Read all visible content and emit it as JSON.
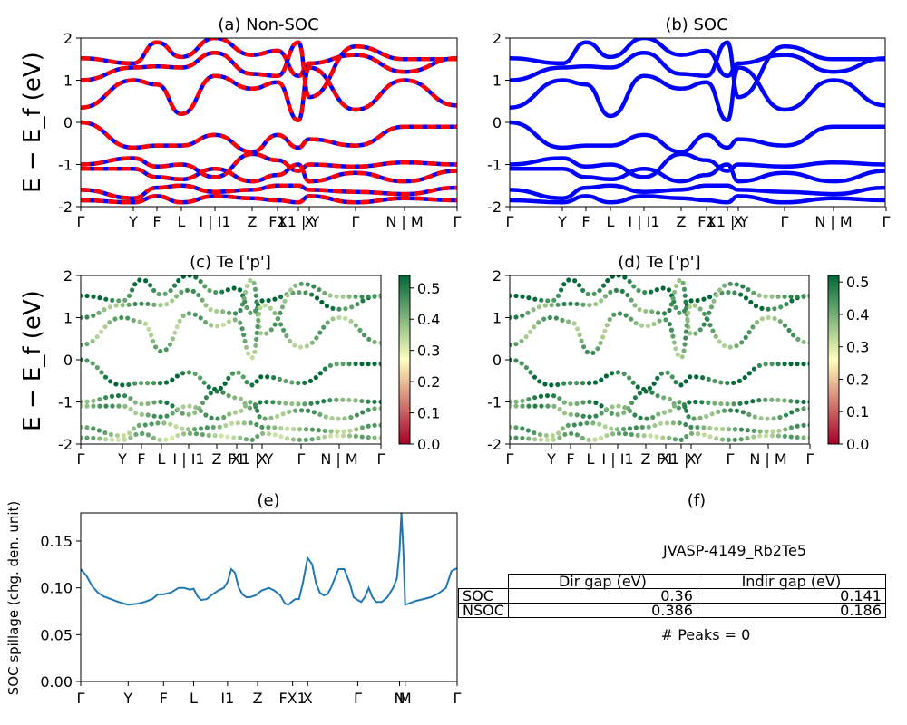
{
  "ylabel_main": "E − E_f (eV)",
  "panels": {
    "a": {
      "title": "(a) Non-SOC"
    },
    "b": {
      "title": "(b) SOC"
    },
    "c": {
      "title": "(c)  Te ['p']"
    },
    "d": {
      "title": "(d) Te ['p']"
    },
    "e": {
      "title": "(e)",
      "ylabel": "SOC spillage (chg. den. unit)"
    },
    "f": {
      "title": "(f)",
      "material": "JVASP-4149_Rb2Te5",
      "peaks": "# Peaks = 0"
    }
  },
  "colors": {
    "nonsoc_red": "#ff0000",
    "nonsoc_blue": "#0000ff",
    "soc_blue": "#0000ff",
    "spillage": "#1f77b4",
    "cmap_low": "#a50026",
    "cmap_mid": "#ffffbf",
    "cmap_high": "#006837"
  },
  "table": {
    "columns": [
      "",
      "Dir gap (eV)",
      "Indir gap (eV)"
    ],
    "rows": [
      {
        "label": "SOC",
        "dir": "0.36",
        "indir": "0.141"
      },
      {
        "label": "NSOC",
        "dir": "0.386",
        "indir": "0.186"
      }
    ]
  },
  "chart_data": [
    {
      "type": "line",
      "panel": "a",
      "title": "(a) Non-SOC",
      "ylim": [
        -2,
        2
      ],
      "yticks": [
        -2,
        -1,
        0,
        1,
        2
      ],
      "kpath_labels": [
        "Γ",
        "Y",
        "F",
        "L",
        "I | I1",
        "Z",
        "F1",
        "X1 | Y",
        "X",
        "Γ",
        "N | M",
        "Γ"
      ],
      "series": [
        {
          "values": [
            1.52,
            1.4,
            1.9,
            1.55,
            2.0,
            1.6,
            1.7,
            1.1,
            1.4,
            1.6,
            1.2,
            1.52
          ]
        },
        {
          "values": [
            1.0,
            1.3,
            1.33,
            1.3,
            1.65,
            1.15,
            1.1,
            1.9,
            0.6,
            1.8,
            1.5,
            1.5
          ]
        },
        {
          "values": [
            0.35,
            1.0,
            0.9,
            0.2,
            1.1,
            0.8,
            0.95,
            0.05,
            1.3,
            0.3,
            1.0,
            0.4
          ]
        },
        {
          "values": [
            0.0,
            -0.6,
            -0.55,
            -0.55,
            -0.3,
            -0.7,
            -0.3,
            -0.6,
            -0.4,
            -0.55,
            -0.1,
            -0.1
          ]
        },
        {
          "values": [
            -1.0,
            -0.85,
            -1.05,
            -1.0,
            -1.3,
            -0.75,
            -0.9,
            -1.15,
            -1.0,
            -1.05,
            -0.95,
            -1.0
          ]
        },
        {
          "values": [
            -1.1,
            -1.1,
            -1.3,
            -1.35,
            -1.1,
            -1.4,
            -1.25,
            -1.0,
            -1.4,
            -1.2,
            -1.4,
            -1.15
          ]
        },
        {
          "values": [
            -1.6,
            -1.8,
            -1.55,
            -1.5,
            -1.65,
            -1.6,
            -1.5,
            -1.5,
            -1.6,
            -1.65,
            -1.7,
            -1.55
          ]
        },
        {
          "values": [
            -1.85,
            -1.9,
            -1.75,
            -1.9,
            -1.75,
            -1.8,
            -1.85,
            -1.9,
            -1.75,
            -1.9,
            -1.8,
            -1.85
          ]
        }
      ]
    },
    {
      "type": "line",
      "panel": "b",
      "title": "(b) SOC",
      "ylim": [
        -2,
        2
      ],
      "yticks": [
        -2,
        -1,
        0,
        1,
        2
      ],
      "kpath_labels": [
        "Γ",
        "Y",
        "F",
        "L",
        "I | I1",
        "Z",
        "F1",
        "X1 | Y",
        "X",
        "Γ",
        "N | M",
        "Γ"
      ],
      "series": [
        {
          "values": [
            1.52,
            1.4,
            1.9,
            1.55,
            2.0,
            1.6,
            1.7,
            1.1,
            1.4,
            1.6,
            1.2,
            1.52
          ]
        },
        {
          "values": [
            1.0,
            1.3,
            1.33,
            1.3,
            1.65,
            1.15,
            1.1,
            1.9,
            0.6,
            1.8,
            1.5,
            1.5
          ]
        },
        {
          "values": [
            0.35,
            1.0,
            0.9,
            0.15,
            1.1,
            0.8,
            0.95,
            0.05,
            1.3,
            0.3,
            1.0,
            0.4
          ]
        },
        {
          "values": [
            0.0,
            -0.6,
            -0.55,
            -0.55,
            -0.3,
            -0.7,
            -0.3,
            -0.6,
            -0.4,
            -0.55,
            -0.1,
            -0.1
          ]
        },
        {
          "values": [
            -1.0,
            -0.85,
            -1.05,
            -1.0,
            -1.3,
            -0.75,
            -0.9,
            -1.15,
            -1.0,
            -1.05,
            -0.95,
            -1.0
          ]
        },
        {
          "values": [
            -1.1,
            -1.1,
            -1.3,
            -1.35,
            -1.1,
            -1.4,
            -1.25,
            -1.0,
            -1.4,
            -1.2,
            -1.4,
            -1.15
          ]
        },
        {
          "values": [
            -1.6,
            -1.8,
            -1.55,
            -1.5,
            -1.65,
            -1.6,
            -1.5,
            -1.5,
            -1.6,
            -1.65,
            -1.7,
            -1.55
          ]
        },
        {
          "values": [
            -1.85,
            -1.9,
            -1.75,
            -1.9,
            -1.75,
            -1.8,
            -1.85,
            -1.9,
            -1.75,
            -1.9,
            -1.8,
            -1.85
          ]
        }
      ]
    },
    {
      "type": "scatter",
      "panel": "c",
      "title": "(c)  Te ['p']",
      "ylim": [
        -2,
        2
      ],
      "yticks": [
        -2,
        -1,
        0,
        1,
        2
      ],
      "colorbar": {
        "min": 0.0,
        "max": 0.54,
        "ticks": [
          0.0,
          0.1,
          0.2,
          0.3,
          0.4,
          0.5
        ]
      },
      "kpath_labels": [
        "Γ",
        "Y",
        "F",
        "L",
        "I | I1",
        "Z",
        "F1",
        "X1 | Y",
        "X",
        "Γ",
        "N | M",
        "Γ"
      ],
      "series": [
        {
          "values": [
            1.52,
            1.4,
            1.9,
            1.55,
            2.0,
            1.6,
            1.7,
            1.1,
            1.4,
            1.6,
            1.2,
            1.52
          ],
          "weight": 0.5
        },
        {
          "values": [
            1.0,
            1.3,
            1.33,
            1.3,
            1.65,
            1.15,
            1.1,
            1.9,
            0.6,
            1.8,
            1.5,
            1.5
          ],
          "weight": 0.42
        },
        {
          "values": [
            0.35,
            1.0,
            0.9,
            0.2,
            1.1,
            0.8,
            0.95,
            0.05,
            1.3,
            0.3,
            1.0,
            0.4
          ],
          "weight": 0.4
        },
        {
          "values": [
            0.0,
            -0.6,
            -0.55,
            -0.55,
            -0.3,
            -0.7,
            -0.3,
            -0.6,
            -0.4,
            -0.55,
            -0.1,
            -0.1
          ],
          "weight": 0.5
        },
        {
          "values": [
            -1.0,
            -0.85,
            -1.05,
            -1.0,
            -1.3,
            -0.75,
            -0.9,
            -1.15,
            -1.0,
            -1.05,
            -0.95,
            -1.0
          ],
          "weight": 0.45
        },
        {
          "values": [
            -1.1,
            -1.1,
            -1.3,
            -1.35,
            -1.1,
            -1.4,
            -1.25,
            -1.0,
            -1.4,
            -1.2,
            -1.4,
            -1.15
          ],
          "weight": 0.42
        },
        {
          "values": [
            -1.6,
            -1.8,
            -1.55,
            -1.5,
            -1.65,
            -1.6,
            -1.5,
            -1.5,
            -1.6,
            -1.65,
            -1.7,
            -1.55
          ],
          "weight": 0.4
        },
        {
          "values": [
            -1.85,
            -1.9,
            -1.75,
            -1.9,
            -1.75,
            -1.8,
            -1.85,
            -1.9,
            -1.75,
            -1.9,
            -1.8,
            -1.85
          ],
          "weight": 0.38
        }
      ]
    },
    {
      "type": "scatter",
      "panel": "d",
      "title": "(d) Te ['p']",
      "ylim": [
        -2,
        2
      ],
      "yticks": [
        -2,
        -1,
        0,
        1,
        2
      ],
      "colorbar": {
        "min": 0.0,
        "max": 0.52,
        "ticks": [
          0.0,
          0.1,
          0.2,
          0.3,
          0.4,
          0.5
        ]
      },
      "kpath_labels": [
        "Γ",
        "Y",
        "F",
        "L",
        "I | I1",
        "Z",
        "F1",
        "X1 | Y",
        "X",
        "Γ",
        "N | M",
        "Γ"
      ],
      "series": [
        {
          "values": [
            1.52,
            1.4,
            1.9,
            1.55,
            2.0,
            1.6,
            1.7,
            1.1,
            1.4,
            1.6,
            1.2,
            1.52
          ],
          "weight": 0.5
        },
        {
          "values": [
            1.0,
            1.3,
            1.33,
            1.3,
            1.65,
            1.15,
            1.1,
            1.9,
            0.6,
            1.8,
            1.5,
            1.5
          ],
          "weight": 0.42
        },
        {
          "values": [
            0.35,
            1.0,
            0.9,
            0.15,
            1.1,
            0.8,
            0.95,
            0.05,
            1.3,
            0.3,
            1.0,
            0.4
          ],
          "weight": 0.4
        },
        {
          "values": [
            0.0,
            -0.6,
            -0.55,
            -0.55,
            -0.3,
            -0.7,
            -0.3,
            -0.6,
            -0.4,
            -0.55,
            -0.1,
            -0.1
          ],
          "weight": 0.5
        },
        {
          "values": [
            -1.0,
            -0.85,
            -1.05,
            -1.0,
            -1.3,
            -0.75,
            -0.9,
            -1.15,
            -1.0,
            -1.05,
            -0.95,
            -1.0
          ],
          "weight": 0.45
        },
        {
          "values": [
            -1.1,
            -1.1,
            -1.3,
            -1.35,
            -1.1,
            -1.4,
            -1.25,
            -1.0,
            -1.4,
            -1.2,
            -1.4,
            -1.15
          ],
          "weight": 0.42
        },
        {
          "values": [
            -1.6,
            -1.8,
            -1.55,
            -1.5,
            -1.65,
            -1.6,
            -1.5,
            -1.5,
            -1.6,
            -1.65,
            -1.7,
            -1.55
          ],
          "weight": 0.4
        },
        {
          "values": [
            -1.85,
            -1.9,
            -1.75,
            -1.9,
            -1.75,
            -1.8,
            -1.85,
            -1.9,
            -1.75,
            -1.9,
            -1.8,
            -1.85
          ],
          "weight": 0.38
        }
      ]
    },
    {
      "type": "line",
      "panel": "e",
      "title": "(e)",
      "ylabel": "SOC spillage (chg. den. unit)",
      "ylim": [
        0.0,
        0.18
      ],
      "yticks": [
        0.0,
        0.05,
        0.1,
        0.15
      ],
      "xlim": [
        0,
        100
      ],
      "kpath_labels": [
        "Γ",
        "Y",
        "F",
        "L",
        "I1",
        "Z",
        "FX1",
        "X",
        "Γ",
        "N",
        "M",
        "Γ"
      ],
      "kpath_x": [
        0,
        12.6,
        22.0,
        30.0,
        39.0,
        47.0,
        56.3,
        60.3,
        73.6,
        84.7,
        86.2,
        100
      ],
      "x": [
        0,
        1.5,
        3,
        4.5,
        6,
        8,
        10,
        12.6,
        15,
        17,
        19,
        20.5,
        22,
        24,
        26,
        27.5,
        29,
        30,
        31,
        32,
        33.5,
        35,
        36.5,
        38,
        39,
        40,
        41,
        42,
        43,
        44,
        45,
        46.5,
        48,
        50,
        51.5,
        53,
        54.3,
        55.2,
        56,
        57,
        58,
        59,
        60.3,
        61.5,
        62.5,
        63.5,
        64.5,
        65.5,
        66.5,
        67.5,
        68.5,
        70,
        71.5,
        72.5,
        73.6,
        74.5,
        75.5,
        76.5,
        77.5,
        78.5,
        80,
        81.5,
        83,
        84,
        84.7,
        85.2,
        85.7,
        86.2,
        87,
        89,
        91,
        93,
        95,
        97,
        98.5,
        100
      ],
      "y": [
        0.12,
        0.113,
        0.102,
        0.095,
        0.091,
        0.088,
        0.085,
        0.082,
        0.083,
        0.085,
        0.088,
        0.093,
        0.093,
        0.095,
        0.1,
        0.1,
        0.098,
        0.099,
        0.091,
        0.087,
        0.088,
        0.093,
        0.097,
        0.1,
        0.106,
        0.12,
        0.116,
        0.1,
        0.093,
        0.09,
        0.09,
        0.092,
        0.097,
        0.1,
        0.097,
        0.092,
        0.083,
        0.082,
        0.085,
        0.088,
        0.088,
        0.105,
        0.132,
        0.125,
        0.105,
        0.095,
        0.092,
        0.093,
        0.1,
        0.11,
        0.12,
        0.12,
        0.105,
        0.09,
        0.087,
        0.085,
        0.09,
        0.1,
        0.09,
        0.085,
        0.085,
        0.09,
        0.1,
        0.11,
        0.14,
        0.18,
        0.14,
        0.082,
        0.083,
        0.086,
        0.088,
        0.09,
        0.094,
        0.1,
        0.118,
        0.121
      ]
    }
  ]
}
